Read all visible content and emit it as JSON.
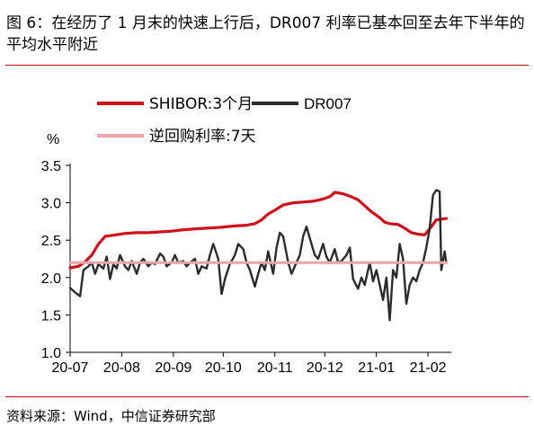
{
  "header": {
    "title": "图 6：在经历了 1 月末的快速上行后，DR007 利率已基本回至去年下半年的平均水平附近"
  },
  "footer": {
    "source": "资料来源：Wind，中信证券研究部"
  },
  "colors": {
    "shibor": "#d0101a",
    "dr007": "#2b2b2b",
    "repo": "#e9a4ad",
    "rule": "#c00000"
  },
  "chart_data": {
    "type": "line",
    "ylabel": "%",
    "ylim": [
      1.0,
      3.5
    ],
    "yticks": [
      "1.0",
      "1.5",
      "2.0",
      "2.5",
      "3.0",
      "3.5"
    ],
    "xlim": [
      "2020-07-01",
      "2021-02-15"
    ],
    "xticks": [
      {
        "date": "2020-07-01",
        "label": "20-07"
      },
      {
        "date": "2020-08-01",
        "label": "20-08"
      },
      {
        "date": "2020-09-01",
        "label": "20-09"
      },
      {
        "date": "2020-10-01",
        "label": "20-10"
      },
      {
        "date": "2020-11-01",
        "label": "20-11"
      },
      {
        "date": "2020-12-01",
        "label": "20-12"
      },
      {
        "date": "2021-01-01",
        "label": "21-01"
      },
      {
        "date": "2021-02-01",
        "label": "21-02"
      }
    ],
    "legend": [
      "SHIBOR:3个月",
      "DR007",
      "逆回购利率:7天"
    ],
    "series": [
      {
        "name": "SHIBOR:3个月",
        "color": "#d0101a",
        "points": [
          [
            "2020-07-01",
            2.13
          ],
          [
            "2020-07-06",
            2.15
          ],
          [
            "2020-07-10",
            2.21
          ],
          [
            "2020-07-14",
            2.3
          ],
          [
            "2020-07-18",
            2.45
          ],
          [
            "2020-07-22",
            2.55
          ],
          [
            "2020-07-28",
            2.57
          ],
          [
            "2020-08-03",
            2.59
          ],
          [
            "2020-08-10",
            2.6
          ],
          [
            "2020-08-17",
            2.6
          ],
          [
            "2020-08-24",
            2.61
          ],
          [
            "2020-08-31",
            2.62
          ],
          [
            "2020-09-07",
            2.64
          ],
          [
            "2020-09-14",
            2.65
          ],
          [
            "2020-09-21",
            2.66
          ],
          [
            "2020-09-28",
            2.67
          ],
          [
            "2020-10-08",
            2.69
          ],
          [
            "2020-10-15",
            2.7
          ],
          [
            "2020-10-20",
            2.72
          ],
          [
            "2020-10-24",
            2.77
          ],
          [
            "2020-10-28",
            2.85
          ],
          [
            "2020-11-01",
            2.9
          ],
          [
            "2020-11-06",
            2.97
          ],
          [
            "2020-11-12",
            3.0
          ],
          [
            "2020-11-18",
            3.01
          ],
          [
            "2020-11-24",
            3.02
          ],
          [
            "2020-11-30",
            3.05
          ],
          [
            "2020-12-04",
            3.08
          ],
          [
            "2020-12-07",
            3.14
          ],
          [
            "2020-12-12",
            3.12
          ],
          [
            "2020-12-17",
            3.08
          ],
          [
            "2020-12-21",
            3.04
          ],
          [
            "2020-12-25",
            2.96
          ],
          [
            "2020-12-29",
            2.88
          ],
          [
            "2021-01-03",
            2.8
          ],
          [
            "2021-01-06",
            2.74
          ],
          [
            "2021-01-09",
            2.72
          ],
          [
            "2021-01-14",
            2.71
          ],
          [
            "2021-01-18",
            2.66
          ],
          [
            "2021-01-22",
            2.6
          ],
          [
            "2021-01-26",
            2.58
          ],
          [
            "2021-01-30",
            2.57
          ],
          [
            "2021-02-03",
            2.68
          ],
          [
            "2021-02-06",
            2.77
          ],
          [
            "2021-02-09",
            2.78
          ],
          [
            "2021-02-12",
            2.79
          ]
        ]
      },
      {
        "name": "DR007",
        "color": "#2b2b2b",
        "points": [
          [
            "2020-07-01",
            1.86
          ],
          [
            "2020-07-04",
            1.8
          ],
          [
            "2020-07-07",
            1.75
          ],
          [
            "2020-07-09",
            2.1
          ],
          [
            "2020-07-12",
            2.15
          ],
          [
            "2020-07-14",
            2.2
          ],
          [
            "2020-07-16",
            2.05
          ],
          [
            "2020-07-18",
            2.18
          ],
          [
            "2020-07-21",
            2.12
          ],
          [
            "2020-07-23",
            2.28
          ],
          [
            "2020-07-25",
            1.98
          ],
          [
            "2020-07-27",
            2.18
          ],
          [
            "2020-07-29",
            2.12
          ],
          [
            "2020-07-31",
            2.3
          ],
          [
            "2020-08-03",
            2.15
          ],
          [
            "2020-08-05",
            2.1
          ],
          [
            "2020-08-07",
            2.22
          ],
          [
            "2020-08-10",
            2.05
          ],
          [
            "2020-08-12",
            2.2
          ],
          [
            "2020-08-14",
            2.25
          ],
          [
            "2020-08-17",
            2.15
          ],
          [
            "2020-08-19",
            2.2
          ],
          [
            "2020-08-21",
            2.18
          ],
          [
            "2020-08-24",
            2.32
          ],
          [
            "2020-08-26",
            2.28
          ],
          [
            "2020-08-28",
            2.15
          ],
          [
            "2020-08-31",
            2.2
          ],
          [
            "2020-09-02",
            2.3
          ],
          [
            "2020-09-04",
            2.2
          ],
          [
            "2020-09-07",
            2.22
          ],
          [
            "2020-09-09",
            2.15
          ],
          [
            "2020-09-11",
            2.2
          ],
          [
            "2020-09-14",
            2.25
          ],
          [
            "2020-09-16",
            2.05
          ],
          [
            "2020-09-18",
            2.15
          ],
          [
            "2020-09-21",
            2.12
          ],
          [
            "2020-09-23",
            2.3
          ],
          [
            "2020-09-25",
            2.45
          ],
          [
            "2020-09-28",
            2.25
          ],
          [
            "2020-09-30",
            1.78
          ],
          [
            "2020-10-02",
            1.98
          ],
          [
            "2020-10-05",
            2.18
          ],
          [
            "2020-10-08",
            2.3
          ],
          [
            "2020-10-10",
            2.45
          ],
          [
            "2020-10-13",
            2.38
          ],
          [
            "2020-10-15",
            2.2
          ],
          [
            "2020-10-17",
            2.1
          ],
          [
            "2020-10-20",
            1.88
          ],
          [
            "2020-10-22",
            2.05
          ],
          [
            "2020-10-24",
            2.2
          ],
          [
            "2020-10-26",
            2.1
          ],
          [
            "2020-10-28",
            2.35
          ],
          [
            "2020-10-31",
            2.05
          ],
          [
            "2020-11-02",
            2.4
          ],
          [
            "2020-11-04",
            2.6
          ],
          [
            "2020-11-06",
            2.55
          ],
          [
            "2020-11-09",
            2.2
          ],
          [
            "2020-11-11",
            2.05
          ],
          [
            "2020-11-13",
            2.15
          ],
          [
            "2020-11-16",
            2.3
          ],
          [
            "2020-11-18",
            2.55
          ],
          [
            "2020-11-20",
            2.68
          ],
          [
            "2020-11-23",
            2.45
          ],
          [
            "2020-11-25",
            2.3
          ],
          [
            "2020-11-27",
            2.25
          ],
          [
            "2020-11-30",
            2.45
          ],
          [
            "2020-12-02",
            2.28
          ],
          [
            "2020-12-04",
            2.2
          ],
          [
            "2020-12-07",
            2.38
          ],
          [
            "2020-12-09",
            2.2
          ],
          [
            "2020-12-11",
            2.22
          ],
          [
            "2020-12-14",
            2.3
          ],
          [
            "2020-12-16",
            2.4
          ],
          [
            "2020-12-18",
            1.98
          ],
          [
            "2020-12-21",
            1.85
          ],
          [
            "2020-12-23",
            2.0
          ],
          [
            "2020-12-25",
            1.9
          ],
          [
            "2020-12-28",
            2.2
          ],
          [
            "2020-12-30",
            1.95
          ],
          [
            "2021-01-01",
            2.1
          ],
          [
            "2021-01-03",
            1.9
          ],
          [
            "2021-01-05",
            1.7
          ],
          [
            "2021-01-07",
            2.0
          ],
          [
            "2021-01-09",
            1.43
          ],
          [
            "2021-01-11",
            2.1
          ],
          [
            "2021-01-13",
            2.0
          ],
          [
            "2021-01-15",
            2.45
          ],
          [
            "2021-01-17",
            2.25
          ],
          [
            "2021-01-19",
            1.65
          ],
          [
            "2021-01-21",
            1.9
          ],
          [
            "2021-01-23",
            2.0
          ],
          [
            "2021-01-25",
            1.95
          ],
          [
            "2021-01-27",
            2.1
          ],
          [
            "2021-01-29",
            2.2
          ],
          [
            "2021-01-31",
            2.4
          ],
          [
            "2021-02-02",
            2.65
          ],
          [
            "2021-02-04",
            3.1
          ],
          [
            "2021-02-06",
            3.17
          ],
          [
            "2021-02-08",
            3.15
          ],
          [
            "2021-02-09",
            2.1
          ],
          [
            "2021-02-11",
            2.35
          ],
          [
            "2021-02-12",
            2.2
          ]
        ]
      },
      {
        "name": "逆回购利率:7天",
        "color": "#e9a4ad",
        "points": [
          [
            "2020-07-01",
            2.2
          ],
          [
            "2021-02-12",
            2.2
          ]
        ]
      }
    ]
  }
}
